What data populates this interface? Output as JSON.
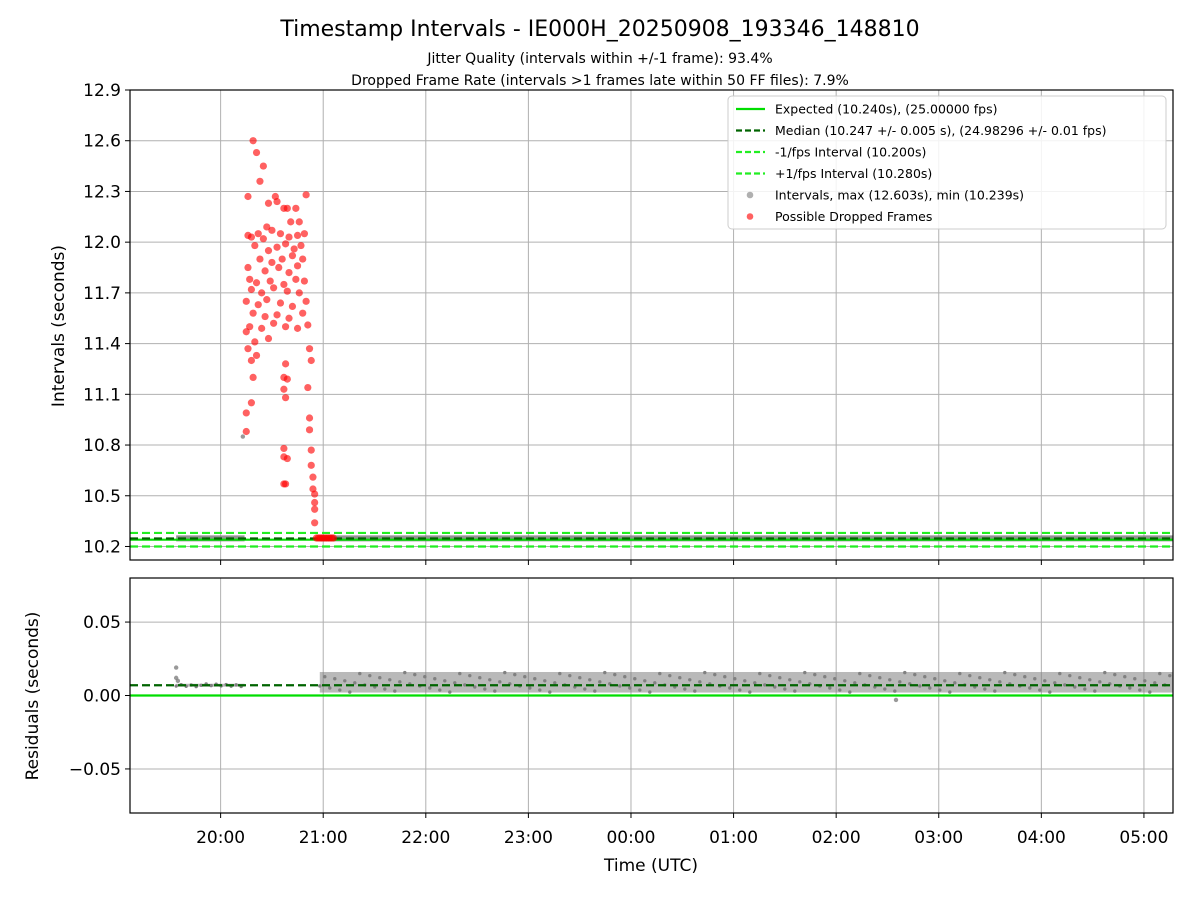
{
  "figure": {
    "title": "Timestamp Intervals - IE000H_20250908_193346_148810",
    "subtitle_1": "Jitter Quality (intervals within +/-1 frame): 93.4%",
    "subtitle_2": "Dropped Frame Rate (intervals >1 frames late within 50 FF files): 7.9%"
  },
  "chart_data": [
    {
      "type": "scatter",
      "panel": "intervals",
      "xlabel": "",
      "ylabel": "Intervals (seconds)",
      "xlim": [
        "19:07",
        "05:17"
      ],
      "ylim": [
        10.12,
        12.9
      ],
      "yticks": [
        "10.2",
        "10.5",
        "10.8",
        "11.1",
        "11.4",
        "11.7",
        "12.0",
        "12.3",
        "12.6",
        "12.9"
      ],
      "grid": true,
      "legend_position": "top-right",
      "legend": [
        "Expected (10.240s), (25.00000 fps)",
        "Median (10.247 +/- 0.005 s), (24.98296 +/- 0.01 fps)",
        "-1/fps Interval (10.200s)",
        "+1/fps Interval (10.280s)",
        "Intervals, max (12.603s), min (10.239s)",
        "Possible Dropped Frames"
      ],
      "reference_lines": [
        {
          "name": "Expected",
          "y": 10.24,
          "color": "#00dd00",
          "style": "solid"
        },
        {
          "name": "Median",
          "y": 10.247,
          "color": "#006400",
          "style": "dashed"
        },
        {
          "name": "-1/fps Interval",
          "y": 10.2,
          "color": "#22ee22",
          "style": "dashed"
        },
        {
          "name": "+1/fps Interval",
          "y": 10.28,
          "color": "#22ee22",
          "style": "dashed"
        }
      ],
      "series": [
        {
          "name": "Intervals",
          "color": "#808080",
          "segments": [
            {
              "from": "19:34",
              "to": "20:14",
              "y": 10.248
            },
            {
              "from": "20:58",
              "to": "05:17",
              "y": 10.248
            }
          ],
          "points": [
            {
              "x": "20:13",
              "y": 10.85
            }
          ]
        },
        {
          "name": "Possible Dropped Frames",
          "color": "#ff0000",
          "points": [
            {
              "x": "20:19",
              "y": 12.6
            },
            {
              "x": "20:21",
              "y": 12.53
            },
            {
              "x": "20:25",
              "y": 12.45
            },
            {
              "x": "20:23",
              "y": 12.36
            },
            {
              "x": "20:16",
              "y": 12.27
            },
            {
              "x": "20:32",
              "y": 12.27
            },
            {
              "x": "20:50",
              "y": 12.28
            },
            {
              "x": "20:28",
              "y": 12.23
            },
            {
              "x": "20:33",
              "y": 12.24
            },
            {
              "x": "20:37",
              "y": 12.2
            },
            {
              "x": "20:39",
              "y": 12.2
            },
            {
              "x": "20:44",
              "y": 12.2
            },
            {
              "x": "20:41",
              "y": 12.12
            },
            {
              "x": "20:46",
              "y": 12.12
            },
            {
              "x": "20:27",
              "y": 12.09
            },
            {
              "x": "20:30",
              "y": 12.07
            },
            {
              "x": "20:35",
              "y": 12.05
            },
            {
              "x": "20:16",
              "y": 12.04
            },
            {
              "x": "20:18",
              "y": 12.03
            },
            {
              "x": "20:22",
              "y": 12.05
            },
            {
              "x": "20:25",
              "y": 12.02
            },
            {
              "x": "20:40",
              "y": 12.03
            },
            {
              "x": "20:45",
              "y": 12.04
            },
            {
              "x": "20:49",
              "y": 12.05
            },
            {
              "x": "20:20",
              "y": 11.98
            },
            {
              "x": "20:28",
              "y": 11.95
            },
            {
              "x": "20:33",
              "y": 11.97
            },
            {
              "x": "20:38",
              "y": 11.99
            },
            {
              "x": "20:43",
              "y": 11.96
            },
            {
              "x": "20:47",
              "y": 11.98
            },
            {
              "x": "20:23",
              "y": 11.9
            },
            {
              "x": "20:30",
              "y": 11.88
            },
            {
              "x": "20:36",
              "y": 11.9
            },
            {
              "x": "20:42",
              "y": 11.92
            },
            {
              "x": "20:48",
              "y": 11.9
            },
            {
              "x": "20:16",
              "y": 11.85
            },
            {
              "x": "20:26",
              "y": 11.83
            },
            {
              "x": "20:34",
              "y": 11.85
            },
            {
              "x": "20:40",
              "y": 11.82
            },
            {
              "x": "20:45",
              "y": 11.86
            },
            {
              "x": "20:17",
              "y": 11.78
            },
            {
              "x": "20:21",
              "y": 11.76
            },
            {
              "x": "20:29",
              "y": 11.77
            },
            {
              "x": "20:37",
              "y": 11.75
            },
            {
              "x": "20:44",
              "y": 11.78
            },
            {
              "x": "20:49",
              "y": 11.77
            },
            {
              "x": "20:18",
              "y": 11.72
            },
            {
              "x": "20:24",
              "y": 11.7
            },
            {
              "x": "20:31",
              "y": 11.73
            },
            {
              "x": "20:39",
              "y": 11.71
            },
            {
              "x": "20:46",
              "y": 11.7
            },
            {
              "x": "20:15",
              "y": 11.65
            },
            {
              "x": "20:22",
              "y": 11.63
            },
            {
              "x": "20:27",
              "y": 11.66
            },
            {
              "x": "20:35",
              "y": 11.64
            },
            {
              "x": "20:42",
              "y": 11.62
            },
            {
              "x": "20:50",
              "y": 11.65
            },
            {
              "x": "20:19",
              "y": 11.58
            },
            {
              "x": "20:26",
              "y": 11.56
            },
            {
              "x": "20:33",
              "y": 11.57
            },
            {
              "x": "20:40",
              "y": 11.55
            },
            {
              "x": "20:48",
              "y": 11.58
            },
            {
              "x": "20:17",
              "y": 11.5
            },
            {
              "x": "20:24",
              "y": 11.49
            },
            {
              "x": "20:31",
              "y": 11.52
            },
            {
              "x": "20:38",
              "y": 11.5
            },
            {
              "x": "20:45",
              "y": 11.49
            },
            {
              "x": "20:51",
              "y": 11.51
            },
            {
              "x": "20:15",
              "y": 11.47
            },
            {
              "x": "20:20",
              "y": 11.41
            },
            {
              "x": "20:28",
              "y": 11.43
            },
            {
              "x": "20:16",
              "y": 11.37
            },
            {
              "x": "20:52",
              "y": 11.37
            },
            {
              "x": "20:21",
              "y": 11.33
            },
            {
              "x": "20:18",
              "y": 11.3
            },
            {
              "x": "20:38",
              "y": 11.28
            },
            {
              "x": "20:53",
              "y": 11.3
            },
            {
              "x": "20:19",
              "y": 11.2
            },
            {
              "x": "20:37",
              "y": 11.2
            },
            {
              "x": "20:39",
              "y": 11.19
            },
            {
              "x": "20:37",
              "y": 11.13
            },
            {
              "x": "20:38",
              "y": 11.08
            },
            {
              "x": "20:51",
              "y": 11.14
            },
            {
              "x": "20:18",
              "y": 11.05
            },
            {
              "x": "20:15",
              "y": 10.99
            },
            {
              "x": "20:52",
              "y": 10.96
            },
            {
              "x": "20:52",
              "y": 10.89
            },
            {
              "x": "20:15",
              "y": 10.88
            },
            {
              "x": "20:37",
              "y": 10.78
            },
            {
              "x": "20:37",
              "y": 10.73
            },
            {
              "x": "20:39",
              "y": 10.72
            },
            {
              "x": "20:53",
              "y": 10.77
            },
            {
              "x": "20:53",
              "y": 10.68
            },
            {
              "x": "20:54",
              "y": 10.61
            },
            {
              "x": "20:37",
              "y": 10.57
            },
            {
              "x": "20:38",
              "y": 10.57
            },
            {
              "x": "20:54",
              "y": 10.54
            },
            {
              "x": "20:55",
              "y": 10.51
            },
            {
              "x": "20:55",
              "y": 10.46
            },
            {
              "x": "20:55",
              "y": 10.42
            },
            {
              "x": "20:55",
              "y": 10.34
            },
            {
              "x": "20:56",
              "y": 10.25
            },
            {
              "x": "20:57",
              "y": 10.25
            },
            {
              "x": "20:58",
              "y": 10.25
            },
            {
              "x": "20:59",
              "y": 10.25
            },
            {
              "x": "21:00",
              "y": 10.25
            },
            {
              "x": "21:01",
              "y": 10.25
            },
            {
              "x": "21:02",
              "y": 10.25
            },
            {
              "x": "21:03",
              "y": 10.25
            },
            {
              "x": "21:04",
              "y": 10.25
            },
            {
              "x": "21:05",
              "y": 10.25
            },
            {
              "x": "21:06",
              "y": 10.25
            }
          ]
        }
      ]
    },
    {
      "type": "scatter",
      "panel": "residuals",
      "xlabel": "Time (UTC)",
      "ylabel": "Residuals (seconds)",
      "xlim": [
        "19:07",
        "05:17"
      ],
      "ylim": [
        -0.08,
        0.08
      ],
      "yticks": [
        "0.05",
        "0.00",
        "−0.05"
      ],
      "xticks": [
        "20:00",
        "21:00",
        "22:00",
        "23:00",
        "00:00",
        "01:00",
        "02:00",
        "03:00",
        "04:00",
        "05:00"
      ],
      "grid": true,
      "reference_lines": [
        {
          "name": "Zero",
          "y": 0.0,
          "color": "#00dd00",
          "style": "solid"
        },
        {
          "name": "Median",
          "y": 0.007,
          "color": "#006400",
          "style": "dashed"
        }
      ],
      "series": [
        {
          "name": "Residuals",
          "color": "#808080",
          "segments": [
            {
              "from": "19:34",
              "to": "20:14",
              "ymin": 0.006,
              "ymax": 0.008
            },
            {
              "from": "20:58",
              "to": "05:17",
              "ymin": 0.002,
              "ymax": 0.016
            }
          ],
          "points": [
            {
              "x": "19:34",
              "y": 0.019
            },
            {
              "x": "19:34",
              "y": 0.012
            },
            {
              "x": "19:35",
              "y": 0.01
            },
            {
              "x": "02:35",
              "y": -0.003
            }
          ]
        }
      ]
    }
  ]
}
